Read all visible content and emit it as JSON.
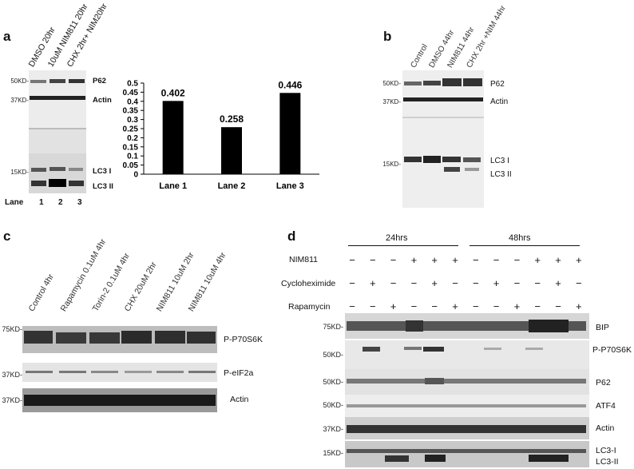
{
  "panel_a": {
    "letter": "a",
    "lane_headers": [
      "DMSO 20hr",
      "10uM NIM811 20hr",
      "CHX 2hr+ NIM20hr"
    ],
    "markers": [
      "50KD-",
      "37KD-",
      "15KD-"
    ],
    "proteins": [
      "P62",
      "Actin",
      "LC3 I",
      "LC3 II"
    ],
    "lane_row": {
      "label": "Lane",
      "numbers": [
        "1",
        "2",
        "3"
      ]
    }
  },
  "chart_data": {
    "type": "bar",
    "categories": [
      "Lane 1",
      "Lane 2",
      "Lane 3"
    ],
    "values": [
      0.402,
      0.258,
      0.446
    ],
    "data_labels": [
      "0.402",
      "0.258",
      "0.446"
    ],
    "ylim": [
      0,
      0.5
    ],
    "yticks": [
      "0",
      "0.05",
      "0.1",
      "0.15",
      "0.2",
      "0.25",
      "0.3",
      "0.35",
      "0.4",
      "0.45",
      "0.5"
    ],
    "title": "",
    "xlabel": "",
    "ylabel": "",
    "bar_color": "#000000"
  },
  "panel_b": {
    "letter": "b",
    "lane_headers": [
      "Control",
      "DMSO 44hr",
      "NIM811 44hr",
      "CHX 2hr +NIM 44hr"
    ],
    "markers": [
      "50KD-",
      "37KD-",
      "15KD-"
    ],
    "proteins": [
      "P62",
      "Actin",
      "LC3 I",
      "LC3 II"
    ]
  },
  "panel_c": {
    "letter": "c",
    "lane_headers": [
      "Control 4hr",
      "Rapamycin 0.1uM 4hr",
      "Torin-2 0.1uM 4hr",
      "CHX 20uM 2hr",
      "NIM811 10uM 2hr",
      "NIM811 10uM 4hr"
    ],
    "markers": [
      "75KD-",
      "37KD-",
      "37KD-"
    ],
    "proteins": [
      "P-P70S6K",
      "P-eIF2a",
      "Actin"
    ]
  },
  "panel_d": {
    "letter": "d",
    "timepoints": [
      "24hrs",
      "48hrs"
    ],
    "treatments": [
      {
        "label": "NIM811",
        "signs": [
          "−",
          "−",
          "−",
          "+",
          "+",
          "+",
          "−",
          "−",
          "−",
          "+",
          "+",
          "+"
        ]
      },
      {
        "label": "Cycloheximide",
        "signs": [
          "−",
          "+",
          "−",
          "−",
          "+",
          "−",
          "−",
          "+",
          "−",
          "−",
          "+",
          "−"
        ]
      },
      {
        "label": "Rapamycin",
        "signs": [
          "−",
          "−",
          "+",
          "−",
          "−",
          "+",
          "−",
          "−",
          "+",
          "−",
          "−",
          "+"
        ]
      }
    ],
    "markers": [
      "75KD-",
      "50KD-",
      "50KD-",
      "50KD-",
      "37KD-",
      "15KD-"
    ],
    "proteins": [
      "BIP",
      "P-P70S6K",
      "P62",
      "ATF4",
      "Actin",
      "LC3-I",
      "LC3-II"
    ]
  }
}
